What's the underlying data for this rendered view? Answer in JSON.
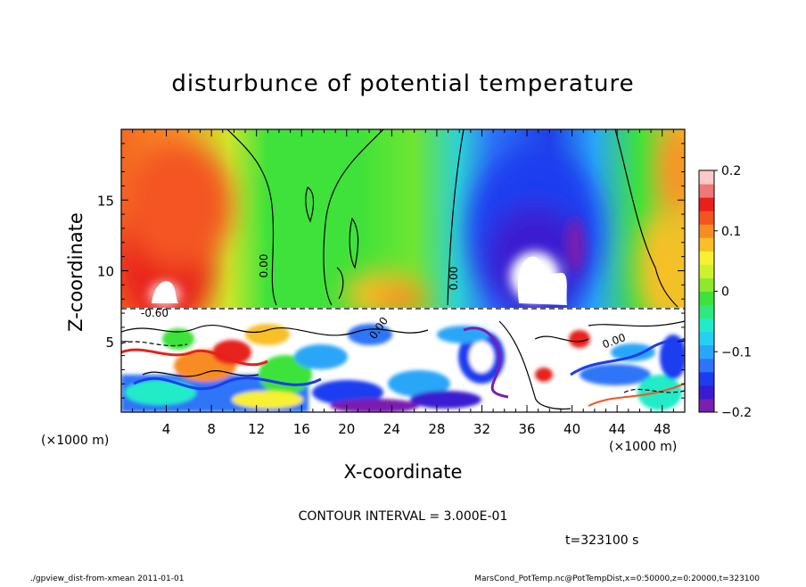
{
  "chart_data": {
    "type": "heatmap",
    "title": "disturbunce of potential temperature",
    "xlabel": "X-coordinate",
    "ylabel": "Z-coordinate",
    "x_unit_label": "(×1000 m)",
    "y_unit_label": "(×1000 m)",
    "xlim": [
      0,
      50
    ],
    "ylim": [
      0,
      20
    ],
    "x_ticks": [
      "4",
      "8",
      "12",
      "16",
      "20",
      "24",
      "28",
      "32",
      "36",
      "40",
      "44",
      "48"
    ],
    "x_tick_values": [
      4,
      8,
      12,
      16,
      20,
      24,
      28,
      32,
      36,
      40,
      44,
      48
    ],
    "y_ticks": [
      "5",
      "10",
      "15"
    ],
    "y_tick_values": [
      5,
      10,
      15
    ],
    "colorbar": {
      "range": [
        -0.2,
        0.2
      ],
      "ticks": [
        "0.2",
        "0.1",
        "0",
        "−0.1",
        "−0.2"
      ],
      "tick_values": [
        0.2,
        0.1,
        0,
        -0.1,
        -0.2
      ],
      "colors": [
        "#7a1fb0",
        "#3a1cd0",
        "#1c3cf0",
        "#2e74f8",
        "#2aa6f8",
        "#26d0f0",
        "#22ecc8",
        "#2fe880",
        "#3ee23a",
        "#8ee82e",
        "#cff02c",
        "#f8f030",
        "#f8c028",
        "#f88c24",
        "#f45420",
        "#e8201c",
        "#f07878",
        "#fcc8c8"
      ]
    },
    "contour_labels": [
      "0.00",
      "0.00",
      "0.00",
      "-0.60",
      "0.00"
    ],
    "contour_interval_text": "CONTOUR INTERVAL = 3.000E-01",
    "time_text": "t=323100 s"
  },
  "footer": {
    "left": "./gpview_dist-from-xmean  2011-01-01",
    "right": "MarsCond_PotTemp.nc@PotTempDist,x=0:50000,z=0:20000,t=323100"
  }
}
